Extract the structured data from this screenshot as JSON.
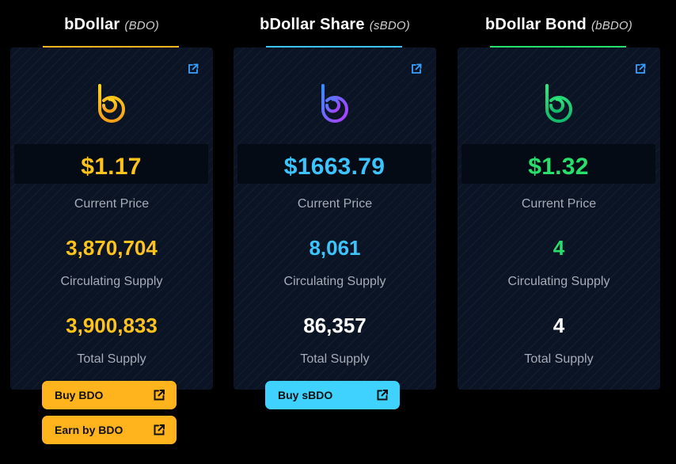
{
  "colors": {
    "gold": "#ffc31c",
    "blue": "#3bc4ff",
    "green": "#27e06c",
    "button_gold": "#ffb31c",
    "button_cyan": "#3fd2ff"
  },
  "tokens": [
    {
      "name": "bDollar",
      "symbol": "(BDO)",
      "price": "$1.17",
      "price_label": "Current Price",
      "circulating_supply": "3,870,704",
      "circulating_label": "Circulating Supply",
      "total_supply": "3,900,833",
      "total_label": "Total Supply",
      "icon": "bdollar-logo-icon",
      "buttons": [
        {
          "label": "Buy BDO"
        },
        {
          "label": "Earn by BDO"
        }
      ]
    },
    {
      "name": "bDollar Share",
      "symbol": "(sBDO)",
      "price": "$1663.79",
      "price_label": "Current Price",
      "circulating_supply": "8,061",
      "circulating_label": "Circulating Supply",
      "total_supply": "86,357",
      "total_label": "Total Supply",
      "icon": "bdollar-share-logo-icon",
      "buttons": [
        {
          "label": "Buy sBDO"
        }
      ]
    },
    {
      "name": "bDollar Bond",
      "symbol": "(bBDO)",
      "price": "$1.32",
      "price_label": "Current Price",
      "circulating_supply": "4",
      "circulating_label": "Circulating Supply",
      "total_supply": "4",
      "total_label": "Total Supply",
      "icon": "bdollar-bond-logo-icon",
      "buttons": []
    }
  ]
}
